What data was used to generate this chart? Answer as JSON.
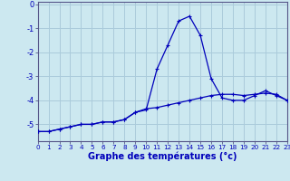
{
  "xlabel": "Graphe des températures (°c)",
  "background_color": "#cce8f0",
  "grid_color": "#aacbdb",
  "line_color": "#0000bb",
  "hours": [
    0,
    1,
    2,
    3,
    4,
    5,
    6,
    7,
    8,
    9,
    10,
    11,
    12,
    13,
    14,
    15,
    16,
    17,
    18,
    19,
    20,
    21,
    22,
    23
  ],
  "temp1": [
    -5.3,
    -5.3,
    -5.2,
    -5.1,
    -5.0,
    -5.0,
    -4.9,
    -4.9,
    -4.8,
    -4.5,
    -4.4,
    -2.7,
    -1.7,
    -0.7,
    -0.5,
    -1.3,
    -3.1,
    -3.9,
    -4.0,
    -4.0,
    -3.8,
    -3.6,
    -3.8,
    -4.0
  ],
  "temp2": [
    -5.3,
    -5.3,
    -5.2,
    -5.1,
    -5.0,
    -5.0,
    -4.9,
    -4.9,
    -4.8,
    -4.5,
    -4.35,
    -4.3,
    -4.2,
    -4.1,
    -4.0,
    -3.9,
    -3.8,
    -3.75,
    -3.75,
    -3.8,
    -3.75,
    -3.7,
    -3.75,
    -4.0
  ],
  "ylim": [
    -5.7,
    0.1
  ],
  "xlim": [
    0,
    23
  ],
  "yticks": [
    0,
    -1,
    -2,
    -3,
    -4,
    -5
  ],
  "ytick_labels": [
    "0",
    "-1",
    "-2",
    "-3",
    "-4",
    "-5"
  ]
}
